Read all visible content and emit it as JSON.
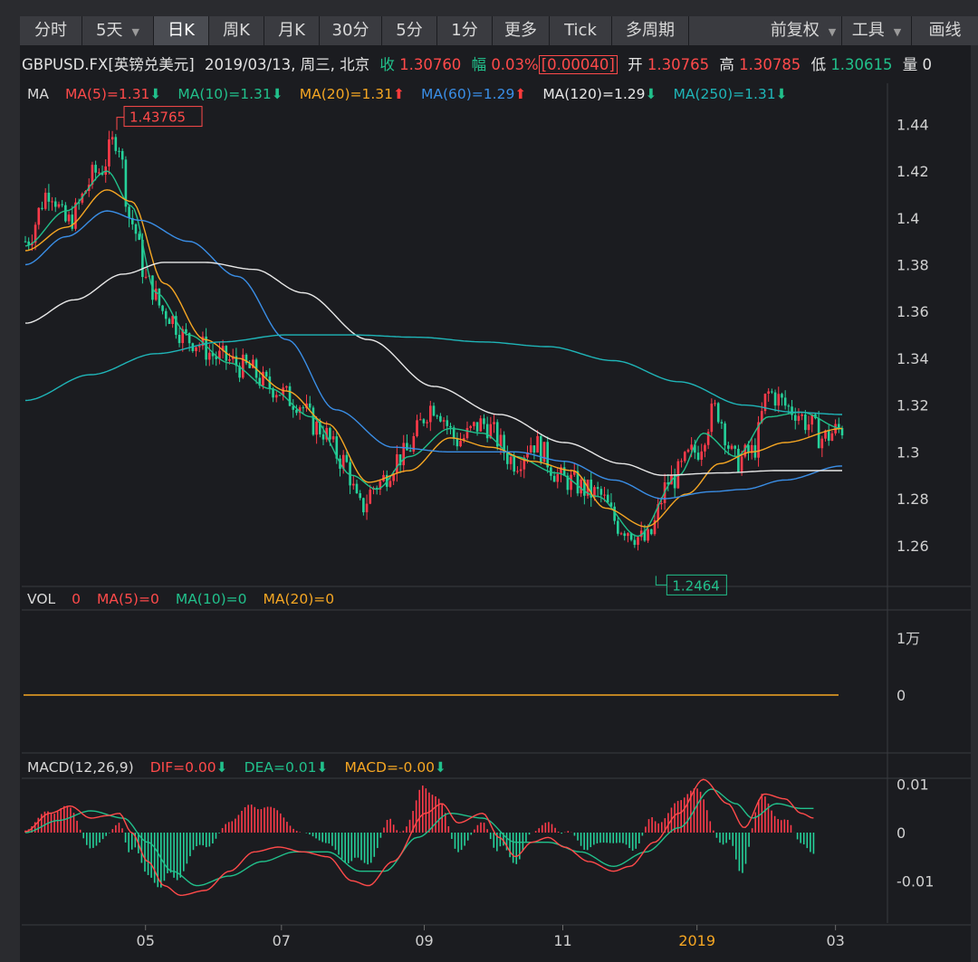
{
  "toolbar": {
    "tabs": [
      "分时",
      "5天",
      "日K",
      "周K",
      "月K",
      "30分",
      "5分",
      "1分",
      "更多",
      "Tick",
      "多周期"
    ],
    "active": "日K",
    "right": [
      "前复权",
      "工具",
      "画线"
    ]
  },
  "info": {
    "symbol": "GBPUSD.FX[英镑兑美元]",
    "datetime": "2019/03/13, 周三, 北京",
    "close_label": "收",
    "close": "1.30760",
    "change_label": "幅",
    "change_pct": "0.03%",
    "change_abs": "[0.00040]",
    "open_label": "开",
    "open": "1.30765",
    "high_label": "高",
    "high": "1.30785",
    "low_label": "低",
    "low": "1.30615",
    "vol_label": "量",
    "vol": "0"
  },
  "ma_legend": {
    "title": "MA",
    "items": [
      {
        "text": "MA(5)=1.31",
        "arrow": "down",
        "color": "#ff4a4a"
      },
      {
        "text": "MA(10)=1.31",
        "arrow": "down",
        "color": "#21c08b"
      },
      {
        "text": "MA(20)=1.31",
        "arrow": "up",
        "color": "#f5a623"
      },
      {
        "text": "MA(60)=1.29",
        "arrow": "up",
        "color": "#3a8ee6"
      },
      {
        "text": "MA(120)=1.29",
        "arrow": "down",
        "color": "#e8e8e8"
      },
      {
        "text": "MA(250)=1.31",
        "arrow": "down",
        "color": "#1fb5b8"
      }
    ]
  },
  "vol_legend": {
    "items": [
      {
        "text": "VOL",
        "color": "#d8d8d8"
      },
      {
        "text": "0",
        "color": "#ff4a4a"
      },
      {
        "text": "MA(5)=0",
        "color": "#ff4a4a"
      },
      {
        "text": "MA(10)=0",
        "color": "#21c08b"
      },
      {
        "text": "MA(20)=0",
        "color": "#f5a623"
      }
    ]
  },
  "macd_legend": {
    "title": "MACD(12,26,9)",
    "items": [
      {
        "text": "DIF=0.00",
        "arrow": "down",
        "color": "#ff4a4a"
      },
      {
        "text": "DEA=0.01",
        "arrow": "down",
        "color": "#21c08b"
      },
      {
        "text": "MACD=-0.00",
        "arrow": "down",
        "color": "#f5a623"
      }
    ]
  },
  "chart_data": {
    "type": "candlestick",
    "price_axis": {
      "ticks": [
        "1.44",
        "1.42",
        "1.4",
        "1.38",
        "1.36",
        "1.34",
        "1.32",
        "1.3",
        "1.28",
        "1.26"
      ],
      "range": [
        1.2425,
        1.4475
      ]
    },
    "x_ticks": [
      "05",
      "07",
      "09",
      "11",
      "2019",
      "03"
    ],
    "x_tick_pos": [
      0.143,
      0.3,
      0.465,
      0.625,
      0.78,
      0.94
    ],
    "highlight_tick": "2019",
    "annotations": {
      "high": "1.43765",
      "low": "1.2464"
    },
    "ma5_anchors": [
      [
        0,
        1.39
      ],
      [
        0.03,
        1.412
      ],
      [
        0.05,
        1.398
      ],
      [
        0.09,
        1.42
      ],
      [
        0.112,
        1.434
      ],
      [
        0.13,
        1.398
      ],
      [
        0.15,
        1.372
      ],
      [
        0.17,
        1.36
      ],
      [
        0.2,
        1.348
      ],
      [
        0.24,
        1.34
      ],
      [
        0.27,
        1.336
      ],
      [
        0.3,
        1.328
      ],
      [
        0.33,
        1.322
      ],
      [
        0.36,
        1.31
      ],
      [
        0.39,
        1.296
      ],
      [
        0.41,
        1.276
      ],
      [
        0.43,
        1.286
      ],
      [
        0.46,
        1.298
      ],
      [
        0.5,
        1.32
      ],
      [
        0.53,
        1.305
      ],
      [
        0.56,
        1.312
      ],
      [
        0.6,
        1.296
      ],
      [
        0.62,
        1.304
      ],
      [
        0.66,
        1.288
      ],
      [
        0.7,
        1.282
      ],
      [
        0.73,
        1.268
      ],
      [
        0.76,
        1.262
      ],
      [
        0.79,
        1.288
      ],
      [
        0.82,
        1.3
      ],
      [
        0.845,
        1.318
      ],
      [
        0.87,
        1.296
      ],
      [
        0.89,
        1.3
      ],
      [
        0.91,
        1.325
      ],
      [
        0.94,
        1.318
      ],
      [
        0.96,
        1.312
      ],
      [
        0.975,
        1.306
      ],
      [
        1,
        1.31
      ]
    ],
    "ma_series": [
      {
        "name": "MA(10)",
        "color": "#21c08b",
        "anchors": [
          [
            0,
            1.388
          ],
          [
            0.05,
            1.403
          ],
          [
            0.1,
            1.42
          ],
          [
            0.13,
            1.405
          ],
          [
            0.16,
            1.368
          ],
          [
            0.2,
            1.35
          ],
          [
            0.25,
            1.338
          ],
          [
            0.3,
            1.327
          ],
          [
            0.35,
            1.315
          ],
          [
            0.4,
            1.29
          ],
          [
            0.43,
            1.284
          ],
          [
            0.47,
            1.298
          ],
          [
            0.52,
            1.31
          ],
          [
            0.56,
            1.308
          ],
          [
            0.6,
            1.298
          ],
          [
            0.65,
            1.291
          ],
          [
            0.7,
            1.281
          ],
          [
            0.75,
            1.264
          ],
          [
            0.8,
            1.29
          ],
          [
            0.83,
            1.308
          ],
          [
            0.87,
            1.298
          ],
          [
            0.91,
            1.315
          ],
          [
            0.95,
            1.317
          ],
          [
            1,
            1.31
          ]
        ]
      },
      {
        "name": "MA(20)",
        "color": "#f5a623",
        "anchors": [
          [
            0,
            1.386
          ],
          [
            0.05,
            1.396
          ],
          [
            0.1,
            1.412
          ],
          [
            0.13,
            1.407
          ],
          [
            0.17,
            1.372
          ],
          [
            0.22,
            1.348
          ],
          [
            0.26,
            1.34
          ],
          [
            0.32,
            1.326
          ],
          [
            0.37,
            1.312
          ],
          [
            0.42,
            1.287
          ],
          [
            0.47,
            1.292
          ],
          [
            0.52,
            1.306
          ],
          [
            0.57,
            1.302
          ],
          [
            0.62,
            1.296
          ],
          [
            0.67,
            1.292
          ],
          [
            0.71,
            1.276
          ],
          [
            0.76,
            1.268
          ],
          [
            0.81,
            1.282
          ],
          [
            0.85,
            1.295
          ],
          [
            0.89,
            1.3
          ],
          [
            0.93,
            1.304
          ],
          [
            1,
            1.31
          ]
        ]
      },
      {
        "name": "MA(60)",
        "color": "#3a8ee6",
        "anchors": [
          [
            0,
            1.38
          ],
          [
            0.05,
            1.392
          ],
          [
            0.1,
            1.403
          ],
          [
            0.14,
            1.399
          ],
          [
            0.2,
            1.39
          ],
          [
            0.26,
            1.375
          ],
          [
            0.32,
            1.348
          ],
          [
            0.38,
            1.318
          ],
          [
            0.45,
            1.302
          ],
          [
            0.52,
            1.3
          ],
          [
            0.6,
            1.3
          ],
          [
            0.66,
            1.296
          ],
          [
            0.72,
            1.288
          ],
          [
            0.78,
            1.28
          ],
          [
            0.84,
            1.283
          ],
          [
            0.88,
            1.284
          ],
          [
            0.93,
            1.288
          ],
          [
            1,
            1.294
          ]
        ]
      },
      {
        "name": "MA(120)",
        "color": "#e8e8e8",
        "anchors": [
          [
            0,
            1.355
          ],
          [
            0.06,
            1.365
          ],
          [
            0.12,
            1.376
          ],
          [
            0.17,
            1.381
          ],
          [
            0.22,
            1.381
          ],
          [
            0.28,
            1.378
          ],
          [
            0.34,
            1.368
          ],
          [
            0.42,
            1.348
          ],
          [
            0.5,
            1.328
          ],
          [
            0.58,
            1.316
          ],
          [
            0.66,
            1.304
          ],
          [
            0.73,
            1.295
          ],
          [
            0.78,
            1.29
          ],
          [
            0.85,
            1.291
          ],
          [
            0.92,
            1.292
          ],
          [
            1,
            1.292
          ]
        ]
      },
      {
        "name": "MA(250)",
        "color": "#1fb5b8",
        "anchors": [
          [
            0,
            1.322
          ],
          [
            0.08,
            1.333
          ],
          [
            0.16,
            1.342
          ],
          [
            0.24,
            1.347
          ],
          [
            0.32,
            1.35
          ],
          [
            0.4,
            1.35
          ],
          [
            0.48,
            1.349
          ],
          [
            0.56,
            1.347
          ],
          [
            0.64,
            1.345
          ],
          [
            0.72,
            1.339
          ],
          [
            0.8,
            1.33
          ],
          [
            0.88,
            1.32
          ],
          [
            0.94,
            1.317
          ],
          [
            1,
            1.316
          ]
        ]
      }
    ],
    "vol_axis": {
      "ticks": [
        "1万",
        "0"
      ]
    },
    "macd_axis": {
      "ticks": [
        "0.01",
        "0",
        "-0.01"
      ],
      "range": [
        -0.015,
        0.015
      ]
    },
    "macd_dif_anchors": [
      [
        0,
        0.0002
      ],
      [
        0.03,
        0.004
      ],
      [
        0.055,
        0.0055
      ],
      [
        0.08,
        0.003
      ],
      [
        0.1,
        0.0035
      ],
      [
        0.115,
        0.004
      ],
      [
        0.13,
        0.0
      ],
      [
        0.15,
        -0.006
      ],
      [
        0.17,
        -0.011
      ],
      [
        0.19,
        -0.013
      ],
      [
        0.22,
        -0.012
      ],
      [
        0.25,
        -0.008
      ],
      [
        0.28,
        -0.004
      ],
      [
        0.31,
        -0.003
      ],
      [
        0.34,
        -0.004
      ],
      [
        0.37,
        -0.005
      ],
      [
        0.4,
        -0.01
      ],
      [
        0.42,
        -0.011
      ],
      [
        0.45,
        -0.006
      ],
      [
        0.49,
        0.004
      ],
      [
        0.51,
        0.006
      ],
      [
        0.53,
        0.002
      ],
      [
        0.56,
        0.004
      ],
      [
        0.58,
        -0.001
      ],
      [
        0.6,
        -0.005
      ],
      [
        0.62,
        -0.002
      ],
      [
        0.64,
        -0.001
      ],
      [
        0.66,
        -0.003
      ],
      [
        0.69,
        -0.006
      ],
      [
        0.72,
        -0.008
      ],
      [
        0.74,
        -0.007
      ],
      [
        0.77,
        -0.002
      ],
      [
        0.8,
        0.004
      ],
      [
        0.83,
        0.011
      ],
      [
        0.86,
        0.006
      ],
      [
        0.88,
        0.001
      ],
      [
        0.905,
        0.008
      ],
      [
        0.93,
        0.007
      ],
      [
        0.95,
        0.004
      ],
      [
        0.965,
        0.003
      ]
    ],
    "macd_dea_anchors": [
      [
        0,
        0.0
      ],
      [
        0.04,
        0.0025
      ],
      [
        0.08,
        0.0045
      ],
      [
        0.12,
        0.003
      ],
      [
        0.15,
        -0.002
      ],
      [
        0.18,
        -0.008
      ],
      [
        0.21,
        -0.011
      ],
      [
        0.25,
        -0.009
      ],
      [
        0.29,
        -0.006
      ],
      [
        0.33,
        -0.004
      ],
      [
        0.37,
        -0.004
      ],
      [
        0.41,
        -0.008
      ],
      [
        0.44,
        -0.008
      ],
      [
        0.48,
        -0.001
      ],
      [
        0.52,
        0.004
      ],
      [
        0.56,
        0.003
      ],
      [
        0.6,
        -0.002
      ],
      [
        0.64,
        -0.002
      ],
      [
        0.68,
        -0.004
      ],
      [
        0.72,
        -0.007
      ],
      [
        0.76,
        -0.004
      ],
      [
        0.8,
        0.001
      ],
      [
        0.84,
        0.009
      ],
      [
        0.87,
        0.006
      ],
      [
        0.89,
        0.003
      ],
      [
        0.92,
        0.006
      ],
      [
        0.95,
        0.005
      ],
      [
        0.965,
        0.005
      ]
    ]
  }
}
